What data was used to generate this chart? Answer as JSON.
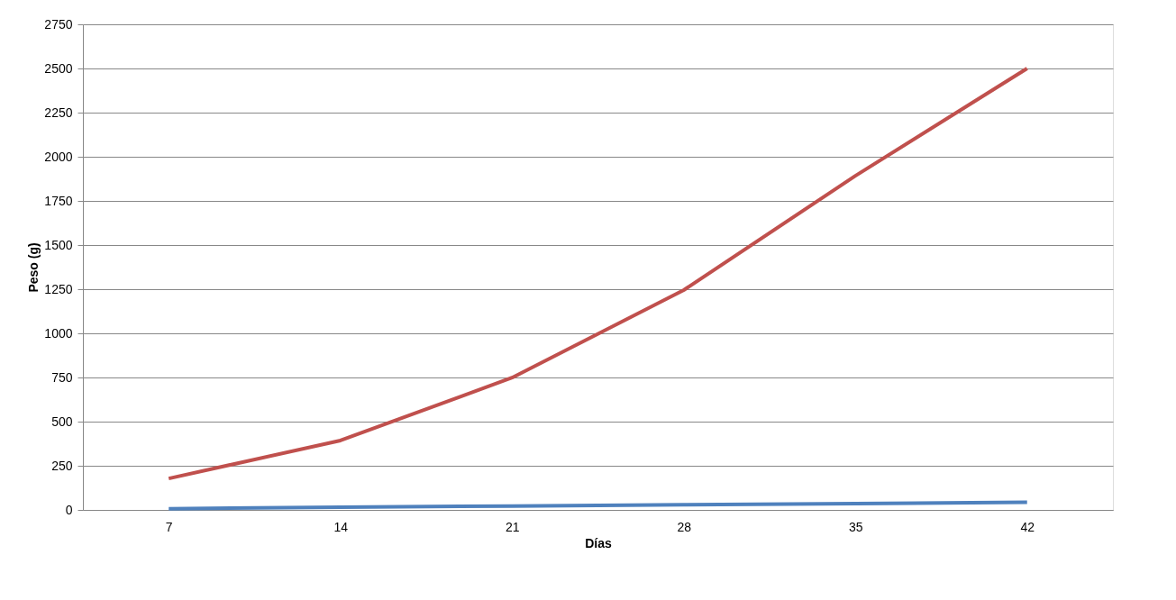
{
  "chart_data": {
    "type": "line",
    "xlabel": "Días",
    "ylabel": "Peso  (g)",
    "categories": [
      "7",
      "14",
      "21",
      "28",
      "35",
      "42"
    ],
    "series": [
      {
        "color": "#4f81bd",
        "values": [
          7,
          15,
          22,
          29,
          36,
          43
        ]
      },
      {
        "color": "#c0504d",
        "values": [
          178,
          393,
          749,
          1245,
          1892,
          2500
        ]
      }
    ],
    "ylim": [
      0,
      2750
    ],
    "yticks": [
      0,
      250,
      500,
      750,
      1000,
      1250,
      1500,
      1750,
      2000,
      2250,
      2500,
      2750
    ],
    "grid": "y",
    "legend": false,
    "marker": "none",
    "line_style": "solid"
  }
}
